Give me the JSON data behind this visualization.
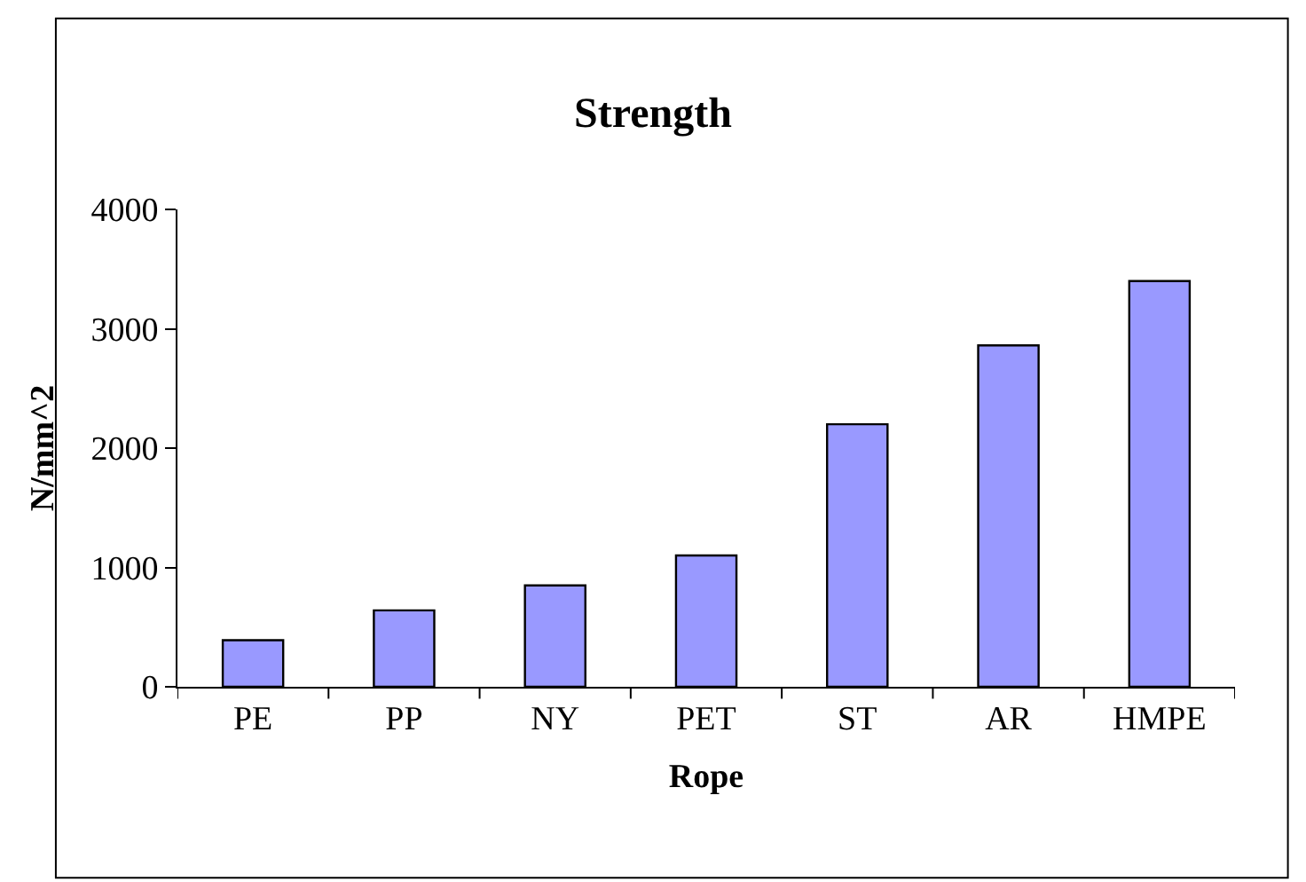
{
  "chart_data": {
    "type": "bar",
    "title": "Strength",
    "xlabel": "Rope",
    "ylabel": "N/mm^2",
    "categories": [
      "PE",
      "PP",
      "NY",
      "PET",
      "ST",
      "AR",
      "HMPE"
    ],
    "series": [
      {
        "color": "#9999ff",
        "values": [
          390,
          640,
          850,
          1100,
          2200,
          2860,
          3400
        ]
      }
    ],
    "ylim": [
      0,
      4000
    ],
    "yticks": [
      0,
      1000,
      2000,
      3000,
      4000
    ],
    "grid": false,
    "legend": false
  }
}
